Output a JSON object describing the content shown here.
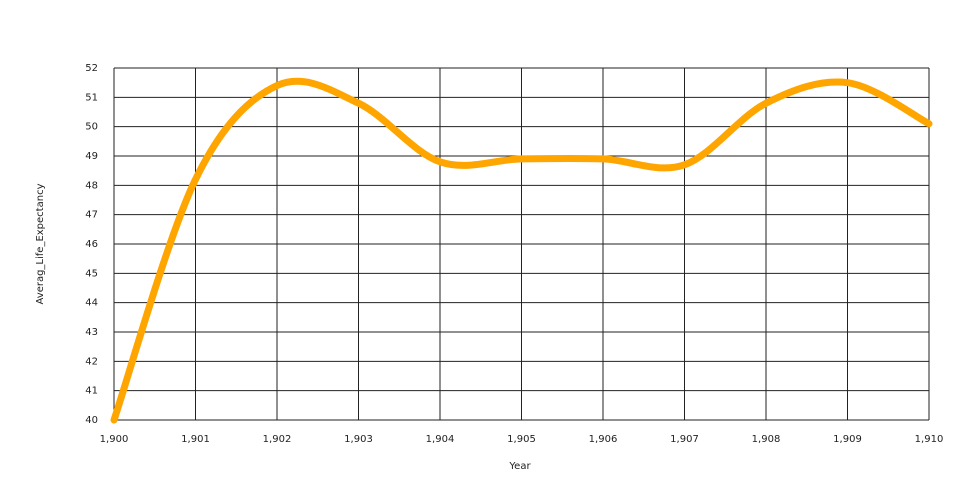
{
  "chart_data": {
    "type": "line",
    "x_label": "Year",
    "y_label": "Averag_Life_Expectancy",
    "x": [
      1900,
      1901,
      1902,
      1903,
      1904,
      1905,
      1906,
      1907,
      1908,
      1909,
      1910
    ],
    "values": [
      40,
      48.2,
      51.4,
      50.8,
      48.8,
      48.9,
      48.9,
      48.7,
      50.8,
      51.5,
      50.1
    ],
    "color": "#ffa500",
    "xlim": [
      1900,
      1910
    ],
    "xticks": [
      {
        "value": 1900,
        "label": "1,900"
      },
      {
        "value": 1901,
        "label": "1,901"
      },
      {
        "value": 1902,
        "label": "1,902"
      },
      {
        "value": 1903,
        "label": "1,903"
      },
      {
        "value": 1904,
        "label": "1,904"
      },
      {
        "value": 1905,
        "label": "1,905"
      },
      {
        "value": 1906,
        "label": "1,906"
      },
      {
        "value": 1907,
        "label": "1,907"
      },
      {
        "value": 1908,
        "label": "1,908"
      },
      {
        "value": 1909,
        "label": "1,909"
      },
      {
        "value": 1910,
        "label": "1,910"
      }
    ],
    "ylim": [
      40,
      52
    ],
    "yticks": [
      40,
      41,
      42,
      43,
      44,
      45,
      46,
      47,
      48,
      49,
      50,
      51,
      52
    ],
    "grid": true
  }
}
